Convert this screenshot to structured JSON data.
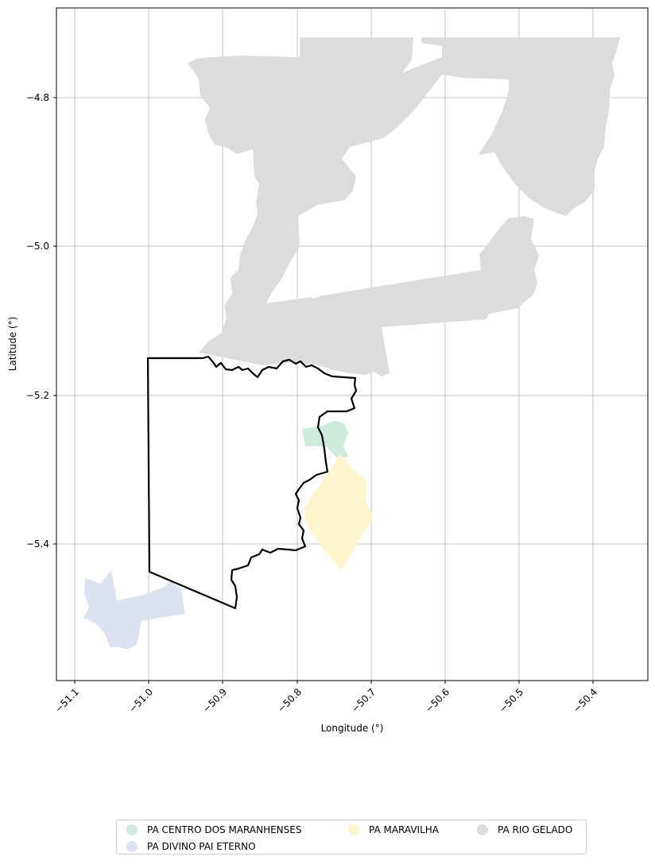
{
  "axes": {
    "xlabel": "Longitude (°)",
    "ylabel": "Latitude (°)",
    "xticks": [
      "−51.1",
      "−51.0",
      "−50.9",
      "−50.8",
      "−50.7",
      "−50.6",
      "−50.5",
      "−50.4"
    ],
    "yticks": [
      "−4.8",
      "−5.0",
      "−5.2",
      "−5.4"
    ],
    "xlim": [
      -51.125,
      -50.33
    ],
    "ylim": [
      -5.585,
      -4.68
    ],
    "grid": true
  },
  "legend": {
    "placement": "bottom-center",
    "items": [
      {
        "label": "PA CENTRO DOS MARANHENSES",
        "color": "#cdebdd"
      },
      {
        "label": "PA DIVINO PAI ETERNO",
        "color": "#dde2f0"
      },
      {
        "label": "PA MARAVILHA",
        "color": "#fff5cc"
      },
      {
        "label": "PA RIO GELADO",
        "color": "#dcdcdc"
      }
    ]
  },
  "map_data": {
    "type": "choropleth-map",
    "boundary_color": "#000000",
    "regions": [
      {
        "name": "PA RIO GELADO",
        "color": "#dcdcdc"
      },
      {
        "name": "PA CENTRO DOS MARANHENSES",
        "color": "#cdebdd"
      },
      {
        "name": "PA MARAVILHA",
        "color": "#fff5cc"
      },
      {
        "name": "PA DIVINO PAI ETERNO",
        "color": "#dde2f0"
      }
    ]
  }
}
